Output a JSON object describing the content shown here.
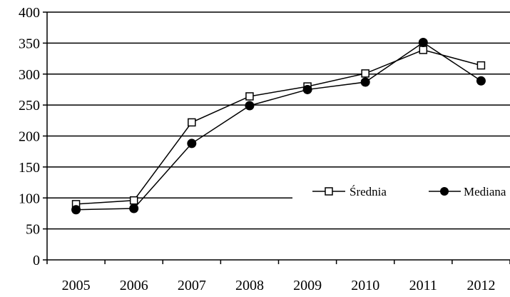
{
  "chart_data": {
    "type": "line",
    "categories": [
      "2005",
      "2006",
      "2007",
      "2008",
      "2009",
      "2010",
      "2011",
      "2012"
    ],
    "ylim": [
      0,
      400
    ],
    "yticks": [
      0,
      50,
      100,
      150,
      200,
      250,
      300,
      350,
      400
    ],
    "grid": true,
    "legend_placement": "right",
    "series": [
      {
        "name": "Średnia",
        "marker": "open-square",
        "color": "#000000",
        "values": [
          90,
          96,
          222,
          264,
          280,
          301,
          339,
          314
        ]
      },
      {
        "name": "Mediana",
        "marker": "filled-circle",
        "color": "#000000",
        "values": [
          81,
          83,
          188,
          249,
          275,
          287,
          351,
          289
        ]
      }
    ]
  }
}
